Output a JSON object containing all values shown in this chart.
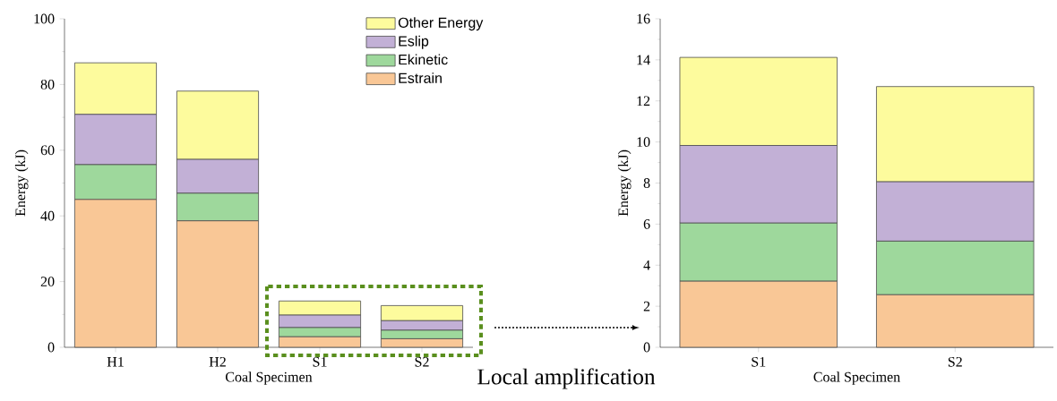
{
  "chart_data": [
    {
      "type": "bar",
      "stacked": true,
      "xlabel": "Coal Specimen",
      "ylabel": "Energy (kJ)",
      "categories": [
        "H1",
        "H2",
        "S1",
        "S2"
      ],
      "ylim": [
        0,
        100
      ],
      "yticks": [
        0,
        20,
        40,
        60,
        80,
        100
      ],
      "legend": "top right",
      "annotations": [
        "Local amplification"
      ],
      "series": [
        {
          "name": "Estrain",
          "color": "#f9c796",
          "values": [
            45,
            38.5,
            3.2,
            2.6
          ]
        },
        {
          "name": "Ekinetic",
          "color": "#9ed89c",
          "values": [
            10.6,
            8.4,
            2.8,
            2.6
          ]
        },
        {
          "name": "Eslip",
          "color": "#c2b0d6",
          "values": [
            15.3,
            10.3,
            3.8,
            2.9
          ]
        },
        {
          "name": "Other Energy",
          "color": "#fdfb9d",
          "values": [
            15.7,
            20.8,
            4.3,
            4.6
          ]
        }
      ]
    },
    {
      "type": "bar",
      "stacked": true,
      "xlabel": "Coal Specimen",
      "ylabel": "Energy (kJ)",
      "categories": [
        "S1",
        "S2"
      ],
      "ylim": [
        0,
        16
      ],
      "yticks": [
        0,
        2,
        4,
        6,
        8,
        10,
        12,
        14,
        16
      ],
      "series": [
        {
          "color": "#f9c796",
          "values": [
            3.22,
            2.56
          ]
        },
        {
          "color": "#9ed89c",
          "values": [
            2.83,
            2.61
          ]
        },
        {
          "color": "#c2b0d6",
          "values": [
            3.78,
            2.89
          ]
        },
        {
          "color": "#fdfb9d",
          "values": [
            4.29,
            4.64
          ]
        }
      ]
    }
  ]
}
